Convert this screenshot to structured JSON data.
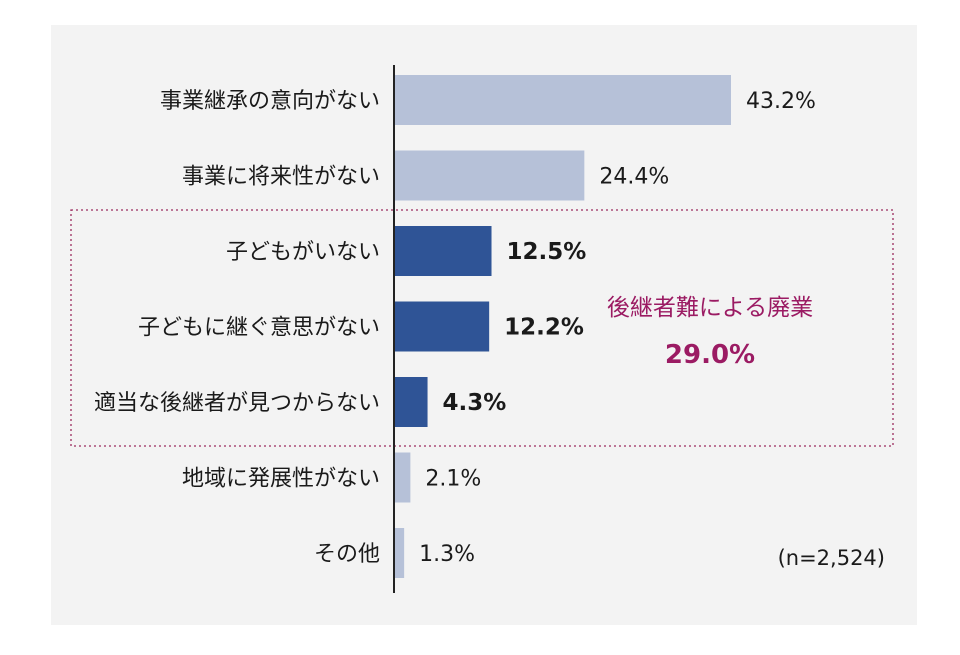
{
  "chart_data": {
    "type": "bar",
    "orientation": "horizontal",
    "unit": "%",
    "categories": [
      "事業継承の意向がない",
      "事業に将来性がない",
      "子どもがいない",
      "子どもに継ぐ意思がない",
      "適当な後継者が見つからない",
      "地域に発展性がない",
      "その他"
    ],
    "values": [
      43.2,
      24.4,
      12.5,
      12.2,
      4.3,
      2.1,
      1.3
    ],
    "value_labels": [
      "43.2%",
      "24.4%",
      "12.5%",
      "12.2%",
      "4.3%",
      "2.1%",
      "1.3%"
    ],
    "highlighted": [
      false,
      false,
      true,
      true,
      true,
      false,
      false
    ],
    "xlim": [
      0,
      55
    ],
    "grid": false,
    "colors": {
      "normal": "#b6c1d8",
      "highlight": "#2f5496",
      "group_border": "#9b2c5e",
      "group_text": "#9b1b63"
    },
    "group_annotation": {
      "title": "後継者難による廃業",
      "value": "29.0%"
    },
    "note": "(n=2,524)"
  }
}
